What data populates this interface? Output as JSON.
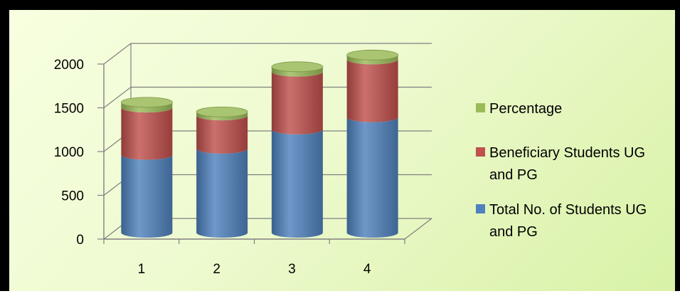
{
  "colors": {
    "background": "#eefad0",
    "total": "#4f81bd",
    "beneficiary": "#c0504d",
    "percentage": "#9bbb59",
    "grid": "#808080"
  },
  "chart_data": {
    "type": "bar",
    "subtype": "stacked-cylinder-3d",
    "title": "",
    "xlabel": "",
    "ylabel": "",
    "categories": [
      "1",
      "2",
      "3",
      "4"
    ],
    "ylim": [
      0,
      2000
    ],
    "yticks": [
      "0",
      "500",
      "1000",
      "1500",
      "2000"
    ],
    "grid": true,
    "legend_position": "right",
    "series": [
      {
        "name": "Total No. of Students UG and PG",
        "color": "#4f81bd",
        "values": [
          890,
          960,
          1180,
          1320
        ]
      },
      {
        "name": "Beneficiary Students UG and PG",
        "color": "#c0504d",
        "values": [
          540,
          380,
          660,
          660
        ]
      },
      {
        "name": "Percentage",
        "color": "#9bbb59",
        "values": [
          60,
          40,
          56,
          50
        ]
      }
    ],
    "legend": [
      {
        "lines": [
          "Percentage"
        ],
        "series": 2
      },
      {
        "lines": [
          "Beneficiary Students UG",
          "and PG"
        ],
        "series": 1
      },
      {
        "lines": [
          "Total No. of Students UG",
          "and PG"
        ],
        "series": 0
      }
    ]
  }
}
